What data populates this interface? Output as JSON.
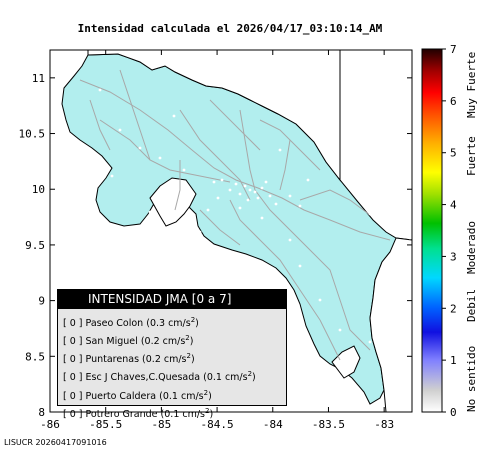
{
  "title": "Intensidad calculada el 2026/04/17_03:10:14_AM",
  "footer": "LISUCR 20260417091016",
  "axes": {
    "x_ticks": [
      "-86",
      "-85.5",
      "-85",
      "-84.5",
      "-84",
      "-83.5",
      "-83"
    ],
    "y_ticks": [
      "11",
      "10.5",
      "10",
      "9.5",
      "9",
      "8.5",
      "8"
    ],
    "xlim": [
      -86,
      -82.75
    ],
    "ylim": [
      8,
      11.25
    ]
  },
  "colorbar": {
    "ticks": [
      "0",
      "1",
      "2",
      "3",
      "4",
      "5",
      "6",
      "7"
    ],
    "range": [
      0,
      7
    ],
    "labels": [
      "No sentido",
      "Debil",
      "Moderado",
      "Fuerte",
      "Muy Fuerte"
    ]
  },
  "legend": {
    "title": "INTENSIDAD JMA [0 a 7]",
    "stations": [
      {
        "intensity": "[ 0 ]",
        "name": "Paseo Colon",
        "value": "0.3 cm/s",
        "unit_sup": "2"
      },
      {
        "intensity": "[ 0 ]",
        "name": "San Miguel",
        "value": "0.2 cm/s",
        "unit_sup": "2"
      },
      {
        "intensity": "[ 0 ]",
        "name": "Puntarenas",
        "value": "0.2 cm/s",
        "unit_sup": "2"
      },
      {
        "intensity": "[ 0 ]",
        "name": "Esc J Chaves,C.Quesada",
        "value": "0.1 cm/s",
        "unit_sup": "2"
      },
      {
        "intensity": "[ 0 ]",
        "name": "Puerto Caldera",
        "value": "0.1 cm/s",
        "unit_sup": "2"
      },
      {
        "intensity": "[ 0 ]",
        "name": "Potrero Grande",
        "value": "0.1 cm/s",
        "unit_sup": "2"
      }
    ]
  },
  "colors": {
    "land": "#b2eeee",
    "sea": "#ffffff",
    "roads": "#a8a8a8",
    "border": "#000000"
  }
}
